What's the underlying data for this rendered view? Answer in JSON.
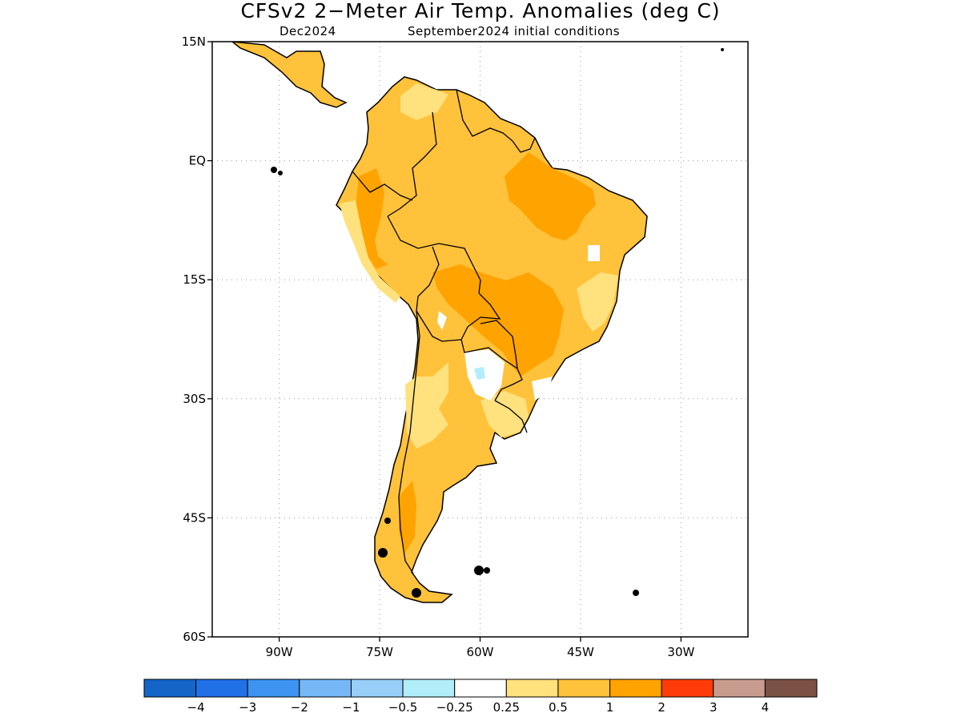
{
  "title": "CFSv2 2−Meter Air Temp. Anomalies (deg C)",
  "subtitle_left": "Dec2024",
  "subtitle_right": "September2024 initial conditions",
  "map": {
    "lon_range": [
      -100,
      -20
    ],
    "lat_range": [
      -60,
      15
    ],
    "lat_labels": [
      {
        "value": 15,
        "label": "15N"
      },
      {
        "value": 0,
        "label": "EQ"
      },
      {
        "value": -15,
        "label": "15S"
      },
      {
        "value": -30,
        "label": "30S"
      },
      {
        "value": -45,
        "label": "45S"
      },
      {
        "value": -60,
        "label": "60S"
      }
    ],
    "lon_labels": [
      {
        "value": -90,
        "label": "90W"
      },
      {
        "value": -75,
        "label": "75W"
      },
      {
        "value": -60,
        "label": "60W"
      },
      {
        "value": -45,
        "label": "45W"
      },
      {
        "value": -30,
        "label": "30W"
      }
    ],
    "gridlines": "dotted",
    "region": "South America"
  },
  "colorbar": {
    "colors": [
      "#1565c8",
      "#2070e8",
      "#3c93f0",
      "#76b8f7",
      "#97cff8",
      "#b2eefa",
      "#ffffff",
      "#ffe17e",
      "#ffc23a",
      "#ffa300",
      "#ff3c08",
      "#c79c8e",
      "#7a5144"
    ],
    "labels": [
      "−4",
      "−3",
      "−2",
      "−1",
      "−0.5",
      "−0.25",
      "0.25",
      "0.5",
      "1",
      "2",
      "3",
      "4"
    ]
  }
}
